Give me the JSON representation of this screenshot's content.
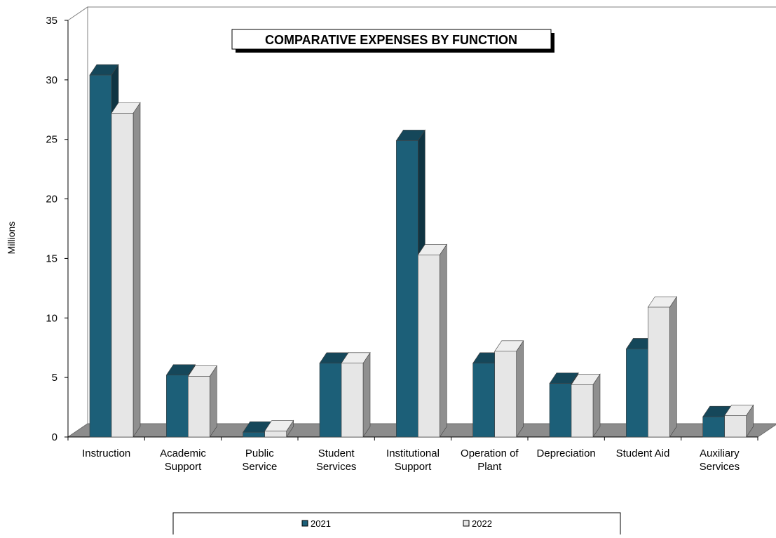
{
  "chart_data": {
    "type": "bar",
    "title": "COMPARATIVE EXPENSES BY FUNCTION",
    "xlabel": "",
    "ylabel": "Millions",
    "ylim": [
      0,
      35
    ],
    "yticks": [
      0,
      5,
      10,
      15,
      20,
      25,
      30,
      35
    ],
    "categories": [
      [
        "Instruction"
      ],
      [
        "Academic",
        "Support"
      ],
      [
        "Public",
        "Service"
      ],
      [
        "Student",
        "Services"
      ],
      [
        "Institutional",
        "Support"
      ],
      [
        "Operation of",
        "Plant"
      ],
      [
        "Depreciation"
      ],
      [
        "Student Aid"
      ],
      [
        "Auxiliary",
        "Services"
      ]
    ],
    "series": [
      {
        "name": "2021",
        "values": [
          30.4,
          5.2,
          0.4,
          6.2,
          24.9,
          6.2,
          4.5,
          7.4,
          1.7
        ],
        "color": "#1c5f78"
      },
      {
        "name": "2022",
        "values": [
          27.2,
          5.1,
          0.5,
          6.2,
          15.3,
          7.2,
          4.4,
          10.9,
          1.8
        ],
        "color": "#e6e6e6"
      }
    ],
    "grid": false,
    "legend_position": "bottom"
  }
}
